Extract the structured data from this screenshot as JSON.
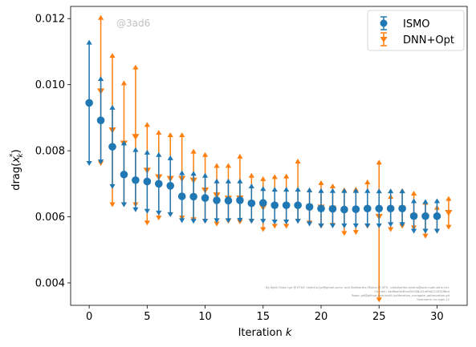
{
  "chart_data": {
    "type": "scatter",
    "xlabel": "Iteration",
    "xlabel_var": "k",
    "ylabel_text": "drag(",
    "ylabel_var": "x",
    "ylabel_sub": "k",
    "ylabel_sup": "*",
    "ylabel_close": ")",
    "xlim": [
      -1.6,
      32.6
    ],
    "ylim": [
      0.00332,
      0.01237
    ],
    "xticks": [
      0,
      5,
      10,
      15,
      20,
      25,
      30
    ],
    "xtick_labels": [
      "0",
      "5",
      "10",
      "15",
      "20",
      "25",
      "30"
    ],
    "yticks": [
      0.004,
      0.006,
      0.008,
      0.01,
      0.012
    ],
    "ytick_labels": [
      "0.004",
      "0.006",
      "0.008",
      "0.010",
      "0.012"
    ],
    "grid": false,
    "legend_position": "top-right",
    "watermark": "@3ad6",
    "footer_lines": [
      "By Kjetil Olsen Lye @ ETHZ <kjetil.o.lye@gmail.com> and Siddhartha Mishra @ SFTL <siddhartha.mishra@sam.math.ethz.ch>",
      "Commit: 3ad6aa0e3fca42e338c41eff4d211051f8b4",
      "Repo: git@github.com:kjetil-lye/iterative_surrogate_optimization.git",
      "Hostname: ku.login.12"
    ],
    "series": [
      {
        "name": "ISMO",
        "color": "#1f77b4",
        "marker": "circle",
        "x": [
          0,
          1,
          2,
          3,
          4,
          5,
          6,
          7,
          8,
          9,
          10,
          11,
          12,
          13,
          14,
          15,
          16,
          17,
          18,
          19,
          20,
          21,
          22,
          23,
          24,
          25,
          26,
          27,
          28,
          29,
          30
        ],
        "y": [
          0.00945,
          0.00892,
          0.00812,
          0.00728,
          0.00711,
          0.00707,
          0.007,
          0.00694,
          0.00662,
          0.00661,
          0.00657,
          0.0065,
          0.00649,
          0.0065,
          0.00641,
          0.00642,
          0.00635,
          0.00635,
          0.00635,
          0.0063,
          0.00625,
          0.00624,
          0.00622,
          0.00623,
          0.00625,
          0.00625,
          0.00625,
          0.00625,
          0.00602,
          0.00602,
          0.00602
        ],
        "lower": [
          0.00765,
          0.0077,
          0.00695,
          0.0064,
          0.00625,
          0.0062,
          0.00615,
          0.0061,
          0.00592,
          0.0059,
          0.0059,
          0.00592,
          0.00592,
          0.00593,
          0.0059,
          0.0059,
          0.00588,
          0.00588,
          0.0059,
          0.00582,
          0.00576,
          0.00576,
          0.00576,
          0.00576,
          0.00576,
          0.00576,
          0.0058,
          0.0058,
          0.0056,
          0.0056,
          0.0056
        ],
        "upper": [
          0.01125,
          0.01015,
          0.00928,
          0.0082,
          0.008,
          0.00792,
          0.00785,
          0.00775,
          0.0073,
          0.00728,
          0.00722,
          0.00705,
          0.00705,
          0.00705,
          0.0069,
          0.00682,
          0.0068,
          0.0068,
          0.0068,
          0.00678,
          0.00676,
          0.00676,
          0.00676,
          0.00676,
          0.00676,
          0.00675,
          0.00675,
          0.00675,
          0.00645,
          0.00643,
          0.00645
        ]
      },
      {
        "name": "DNN+Opt",
        "color": "#ff7f0e",
        "marker": "triangle-down",
        "x": [
          1,
          2,
          3,
          4,
          5,
          6,
          7,
          8,
          9,
          10,
          11,
          12,
          13,
          14,
          15,
          16,
          17,
          18,
          19,
          20,
          21,
          22,
          23,
          24,
          25,
          26,
          27,
          28,
          29,
          30,
          31
        ],
        "y": [
          0.0098,
          0.00862,
          0.00822,
          0.00842,
          0.0074,
          0.0072,
          0.00715,
          0.00715,
          0.0071,
          0.0068,
          0.00665,
          0.00655,
          0.00656,
          0.0064,
          0.00628,
          0.00632,
          0.00632,
          0.00632,
          0.0063,
          0.00628,
          0.00625,
          0.0062,
          0.0062,
          0.0062,
          0.006,
          0.00621,
          0.00625,
          0.00602,
          0.006,
          0.00598,
          0.00612
        ],
        "lower": [
          0.00765,
          0.0064,
          0.0064,
          0.0064,
          0.00585,
          0.006,
          0.0061,
          0.006,
          0.00595,
          0.0059,
          0.00582,
          0.0059,
          0.00588,
          0.0059,
          0.00565,
          0.00575,
          0.00575,
          0.0059,
          0.00585,
          0.00575,
          0.00578,
          0.00553,
          0.00556,
          0.00575,
          0.00352,
          0.00565,
          0.00575,
          0.0057,
          0.00545,
          0.0056,
          0.00572
        ],
        "upper": [
          0.012,
          0.01085,
          0.01002,
          0.0105,
          0.00876,
          0.00852,
          0.00845,
          0.00845,
          0.00795,
          0.00785,
          0.00752,
          0.00752,
          0.0078,
          0.00722,
          0.00712,
          0.00718,
          0.0072,
          0.00765,
          0.00678,
          0.007,
          0.0069,
          0.00678,
          0.0068,
          0.00702,
          0.00762,
          0.00658,
          0.00676,
          0.00668,
          0.0064,
          0.00625,
          0.00652
        ]
      }
    ]
  }
}
